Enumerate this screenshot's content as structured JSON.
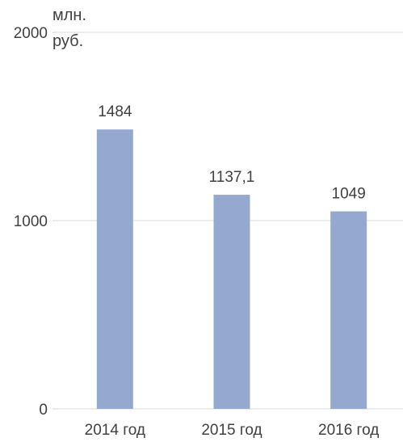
{
  "chart_data": {
    "type": "bar",
    "categories": [
      "2014 год",
      "2015 год",
      "2016 год"
    ],
    "values": [
      1484,
      1137.1,
      1049
    ],
    "data_labels": [
      "1484",
      "1137,1",
      "1049"
    ],
    "y_unit_lines": [
      "млн.",
      "руб."
    ],
    "ylim": [
      0,
      2000
    ],
    "yticks": [
      0,
      1000,
      2000
    ],
    "ytick_labels": [
      "0",
      "1000",
      "2000"
    ],
    "grid": true,
    "legend": "none",
    "bar_color": "#95a9d0"
  }
}
